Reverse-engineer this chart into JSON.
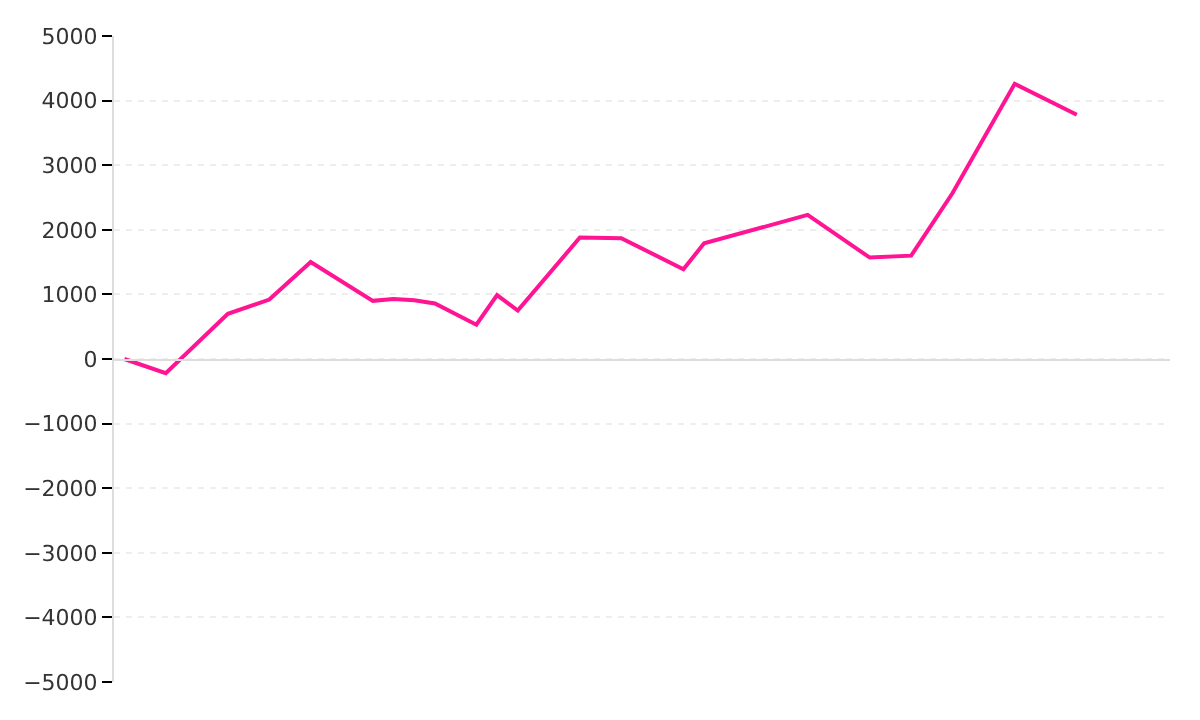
{
  "chart_data": {
    "type": "line",
    "categories": [
      null,
      null,
      null,
      null,
      null,
      null,
      null,
      null,
      null,
      null,
      null,
      null,
      null,
      null,
      null,
      null,
      null,
      null,
      null,
      null,
      null,
      null,
      null,
      null,
      null,
      null,
      null,
      null,
      null,
      null,
      null,
      null,
      null,
      null,
      null,
      null,
      null,
      null,
      null,
      null,
      null,
      null,
      null,
      null,
      null,
      null,
      null,
      null,
      null,
      null,
      null
    ],
    "series": [
      {
        "color": "#ff1493",
        "values": [
          0,
          null,
          -220,
          null,
          null,
          700,
          null,
          920,
          null,
          1500,
          null,
          null,
          900,
          930,
          910,
          860,
          null,
          530,
          990,
          750,
          null,
          null,
          1880,
          null,
          1870,
          null,
          null,
          1390,
          1790,
          null,
          null,
          null,
          null,
          2230,
          null,
          null,
          1570,
          null,
          1600,
          null,
          2570,
          null,
          null,
          4260,
          null,
          null,
          3780,
          null,
          null,
          null,
          null
        ]
      }
    ],
    "ylim": [
      -5000,
      5000
    ],
    "yticks": [
      -5000,
      -4000,
      -3000,
      -2000,
      -1000,
      0,
      1000,
      2000,
      3000,
      4000,
      5000
    ],
    "grid": "y",
    "tick_labels": "y",
    "marker": "none",
    "line_style": "solid"
  }
}
